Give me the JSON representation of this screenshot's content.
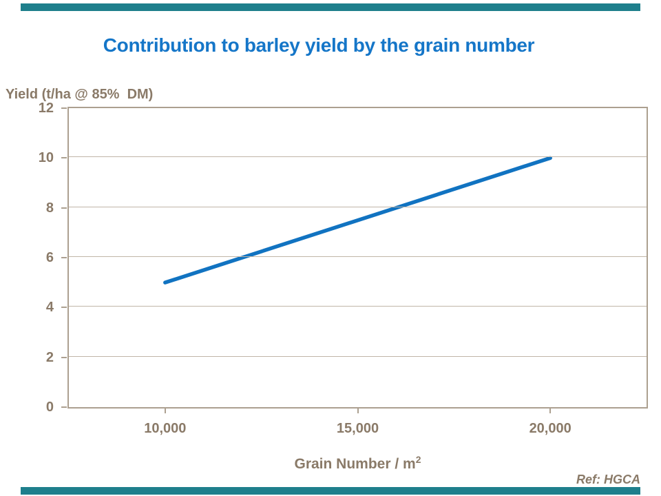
{
  "slide": {
    "title": "Contribution to barley yield by the grain number",
    "ref_note": "Ref: HGCA",
    "colors": {
      "accent_bar": "#1E7F8C",
      "title": "#1576C8",
      "line": "#1173C1",
      "label_text": "#8A7A68",
      "axis_border": "#ACA090",
      "gridline": "#C0B5A7",
      "background": "#FFFFFF"
    }
  },
  "chart_data": {
    "type": "line",
    "title": "Contribution to barley yield by the grain number",
    "ylabel": "Yield (t/ha @ 85%  DM)",
    "xlabel": "Grain Number / m",
    "xlabel_superscript": "2",
    "series": [
      {
        "name": "Yield",
        "x": [
          10000,
          20000
        ],
        "y": [
          5,
          10
        ]
      }
    ],
    "xlim": [
      7500,
      22500
    ],
    "ylim": [
      0,
      12
    ],
    "x_ticks": [
      {
        "value": 10000,
        "label": "10,000"
      },
      {
        "value": 15000,
        "label": "15,000"
      },
      {
        "value": 20000,
        "label": "20,000"
      }
    ],
    "y_ticks": [
      {
        "value": 0,
        "label": "0"
      },
      {
        "value": 2,
        "label": "2"
      },
      {
        "value": 4,
        "label": "4"
      },
      {
        "value": 6,
        "label": "6"
      },
      {
        "value": 8,
        "label": "8"
      },
      {
        "value": 10,
        "label": "10"
      },
      {
        "value": 12,
        "label": "12"
      }
    ],
    "grid": "horizontal",
    "legend": "none",
    "annotation": "Ref: HGCA"
  }
}
